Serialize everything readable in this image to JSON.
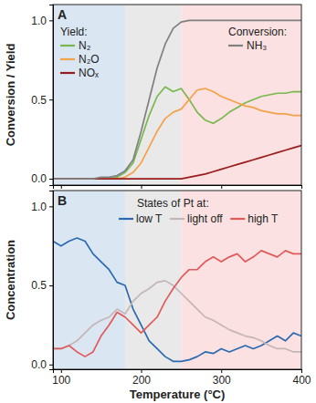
{
  "chart_data": [
    {
      "type": "line",
      "panel": "A",
      "ylabel": "Conversion / Yield",
      "x": [
        90,
        100,
        110,
        120,
        130,
        140,
        150,
        160,
        170,
        180,
        190,
        200,
        210,
        220,
        230,
        240,
        250,
        260,
        270,
        280,
        290,
        300,
        310,
        320,
        330,
        340,
        350,
        360,
        370,
        380,
        390,
        400
      ],
      "xlim": [
        90,
        400
      ],
      "ylim": [
        -0.04,
        1.1
      ],
      "xticks": [
        100,
        200,
        300,
        400
      ],
      "yticks": [
        {
          "value": 0,
          "label": "0.0"
        },
        {
          "value": 0.5,
          "label": "0.5"
        },
        {
          "value": 1,
          "label": "1.0"
        }
      ],
      "tick_labels": "y",
      "shaded_ranges": [
        {
          "from": 90,
          "to": 180,
          "color": "#dbe6f3"
        },
        {
          "from": 180,
          "to": 250,
          "color": "#e9e9e9"
        },
        {
          "from": 250,
          "to": 400,
          "color": "#fbe1e1"
        }
      ],
      "series": [
        {
          "name": "N₂",
          "group": "Yield:",
          "color": "#78b84e",
          "values": [
            0,
            0,
            0,
            0,
            0,
            0,
            0,
            0,
            0.01,
            0.04,
            0.1,
            0.25,
            0.4,
            0.52,
            0.58,
            0.55,
            0.57,
            0.5,
            0.42,
            0.37,
            0.35,
            0.38,
            0.42,
            0.45,
            0.48,
            0.5,
            0.52,
            0.53,
            0.54,
            0.54,
            0.55,
            0.55
          ]
        },
        {
          "name": "N₂O",
          "group": "Yield:",
          "color": "#f4a24a",
          "values": [
            0,
            0,
            0,
            0,
            0,
            0,
            0,
            0,
            0,
            0.01,
            0.04,
            0.1,
            0.2,
            0.3,
            0.38,
            0.42,
            0.44,
            0.5,
            0.56,
            0.57,
            0.55,
            0.52,
            0.5,
            0.48,
            0.46,
            0.45,
            0.43,
            0.42,
            0.41,
            0.41,
            0.4,
            0.4
          ]
        },
        {
          "name": "NOₓ",
          "group": "Yield:",
          "color": "#9b1c1c",
          "values": [
            0,
            0,
            0,
            0,
            0,
            0,
            0,
            0,
            0,
            0,
            0,
            0,
            0,
            0,
            0,
            0,
            0,
            0.01,
            0.02,
            0.03,
            0.045,
            0.06,
            0.075,
            0.09,
            0.105,
            0.12,
            0.135,
            0.15,
            0.165,
            0.18,
            0.195,
            0.21
          ]
        },
        {
          "name": "NH₃",
          "group": "Conversion:",
          "color": "#808080",
          "values": [
            0,
            0,
            0,
            0,
            0,
            0,
            0.01,
            0.01,
            0.02,
            0.05,
            0.12,
            0.3,
            0.5,
            0.7,
            0.85,
            0.95,
            0.99,
            1,
            1,
            1,
            1,
            1,
            1,
            1,
            1,
            1,
            1,
            1,
            1,
            1,
            1,
            1
          ]
        }
      ]
    },
    {
      "type": "line",
      "panel": "B",
      "ylabel": "Concentration",
      "xlabel": "Temperature (°C)",
      "x": [
        90,
        100,
        110,
        120,
        130,
        140,
        150,
        160,
        170,
        180,
        190,
        200,
        210,
        220,
        230,
        240,
        250,
        260,
        270,
        280,
        290,
        300,
        310,
        320,
        330,
        340,
        350,
        360,
        370,
        380,
        390,
        400
      ],
      "xlim": [
        90,
        400
      ],
      "ylim": [
        -0.03,
        1.1
      ],
      "xticks": [
        100,
        200,
        300,
        400
      ],
      "yticks": [
        {
          "value": 0,
          "label": "0.0"
        },
        {
          "value": 0.5,
          "label": "0.5"
        },
        {
          "value": 1,
          "label": "1.0"
        }
      ],
      "shaded_ranges": [
        {
          "from": 90,
          "to": 180,
          "color": "#dbe6f3"
        },
        {
          "from": 180,
          "to": 250,
          "color": "#e9e9e9"
        },
        {
          "from": 250,
          "to": 400,
          "color": "#fbe1e1"
        }
      ],
      "series": [
        {
          "name": "low T",
          "group": "States of Pt at:",
          "color": "#2a6ab0",
          "values": [
            0.78,
            0.75,
            0.78,
            0.8,
            0.78,
            0.7,
            0.65,
            0.6,
            0.52,
            0.5,
            0.35,
            0.25,
            0.15,
            0.1,
            0.05,
            0.02,
            0.02,
            0.03,
            0.05,
            0.08,
            0.07,
            0.1,
            0.08,
            0.1,
            0.12,
            0.1,
            0.12,
            0.15,
            0.18,
            0.15,
            0.2,
            0.18
          ]
        },
        {
          "name": "light off",
          "group": "States of Pt at:",
          "color": "#c4b6b6",
          "values": [
            0.1,
            0.1,
            0.12,
            0.15,
            0.2,
            0.25,
            0.28,
            0.3,
            0.35,
            0.32,
            0.4,
            0.45,
            0.48,
            0.52,
            0.53,
            0.5,
            0.45,
            0.4,
            0.35,
            0.3,
            0.28,
            0.25,
            0.22,
            0.2,
            0.18,
            0.17,
            0.15,
            0.12,
            0.1,
            0.1,
            0.08,
            0.08
          ]
        },
        {
          "name": "high T",
          "group": "States of Pt at:",
          "color": "#e05a5a",
          "values": [
            0.1,
            0.1,
            0.12,
            0.08,
            0.05,
            0.08,
            0.18,
            0.25,
            0.33,
            0.3,
            0.25,
            0.2,
            0.25,
            0.3,
            0.4,
            0.48,
            0.55,
            0.6,
            0.6,
            0.65,
            0.68,
            0.65,
            0.68,
            0.7,
            0.65,
            0.68,
            0.72,
            0.7,
            0.68,
            0.72,
            0.7,
            0.7
          ]
        }
      ]
    }
  ]
}
